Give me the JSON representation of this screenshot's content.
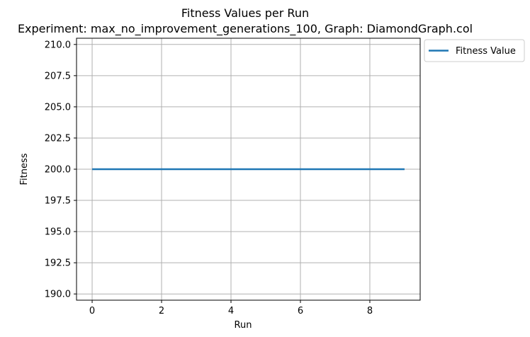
{
  "chart_data": {
    "type": "line",
    "title": "Fitness Values per Run",
    "subtitle": "Experiment: max_no_improvement_generations_100, Graph: DiamondGraph.col",
    "xlabel": "Run",
    "ylabel": "Fitness",
    "xlim": [
      -0.45,
      9.45
    ],
    "ylim": [
      189.5,
      210.5
    ],
    "xticks": [
      0,
      2,
      4,
      6,
      8
    ],
    "xtick_labels": [
      "0",
      "2",
      "4",
      "6",
      "8"
    ],
    "yticks": [
      190.0,
      192.5,
      195.0,
      197.5,
      200.0,
      202.5,
      205.0,
      207.5,
      210.0
    ],
    "ytick_labels": [
      "190.0",
      "192.5",
      "195.0",
      "197.5",
      "200.0",
      "202.5",
      "205.0",
      "207.5",
      "210.0"
    ],
    "grid": true,
    "legend_position": "outside-top-right",
    "series": [
      {
        "name": "Fitness Value",
        "color": "#1f77b4",
        "x": [
          0,
          1,
          2,
          3,
          4,
          5,
          6,
          7,
          8,
          9
        ],
        "values": [
          200,
          200,
          200,
          200,
          200,
          200,
          200,
          200,
          200,
          200
        ]
      }
    ]
  }
}
